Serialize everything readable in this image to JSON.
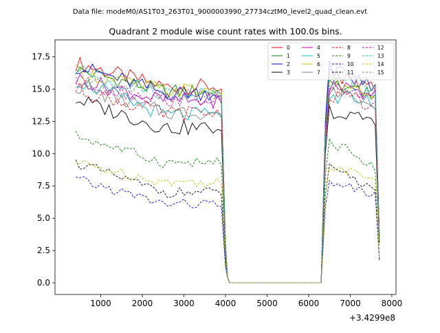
{
  "header": {
    "data_file_label": "Data file: modeM0/AS1T03_263T01_9000003990_27734cztM0_level2_quad_clean.evt"
  },
  "chart_data": {
    "type": "line",
    "title": "Quadrant 2 module wise count rates with 100.0s bins.",
    "xlabel": "",
    "ylabel": "",
    "x_offset_label": "+3.4299e8",
    "xlim": [
      -100,
      8100
    ],
    "ylim": [
      -0.9,
      18.8
    ],
    "xticks": [
      1000,
      2000,
      3000,
      4000,
      5000,
      6000,
      7000,
      8000
    ],
    "xtick_labels": [
      "1000",
      "2000",
      "3000",
      "4000",
      "5000",
      "6000",
      "7000",
      "8000"
    ],
    "yticks": [
      0.0,
      2.5,
      5.0,
      7.5,
      10.0,
      12.5,
      15.0,
      17.5
    ],
    "ytick_labels": [
      "0.0",
      "2.5",
      "5.0",
      "7.5",
      "10.0",
      "12.5",
      "15.0",
      "17.5"
    ],
    "legend_position": "top-right",
    "series": [
      {
        "name": "0",
        "color": "#ff0000",
        "dashed": false,
        "lvl1": 17.0,
        "lvl2": 15.2,
        "post": 16.2,
        "tail": 15.0
      },
      {
        "name": "1",
        "color": "#008000",
        "dashed": false,
        "lvl1": 16.5,
        "lvl2": 14.8,
        "post": 15.6,
        "tail": 14.6
      },
      {
        "name": "2",
        "color": "#0000ff",
        "dashed": false,
        "lvl1": 16.8,
        "lvl2": 14.7,
        "post": 16.6,
        "tail": 15.2
      },
      {
        "name": "3",
        "color": "#000000",
        "dashed": false,
        "lvl1": 14.2,
        "lvl2": 12.0,
        "post": 13.3,
        "tail": 12.3
      },
      {
        "name": "4",
        "color": "#c000c0",
        "dashed": false,
        "lvl1": 15.8,
        "lvl2": 14.1,
        "post": 15.3,
        "tail": 14.4
      },
      {
        "name": "5",
        "color": "#00bfbf",
        "dashed": false,
        "lvl1": 15.7,
        "lvl2": 13.0,
        "post": 14.5,
        "tail": 13.9
      },
      {
        "name": "6",
        "color": "#bfbf00",
        "dashed": false,
        "lvl1": 16.3,
        "lvl2": 14.9,
        "post": 15.8,
        "tail": 14.8
      },
      {
        "name": "7",
        "color": "#808080",
        "dashed": false,
        "lvl1": 15.2,
        "lvl2": 13.2,
        "post": 14.6,
        "tail": 13.6
      },
      {
        "name": "8",
        "color": "#ff0000",
        "dashed": true,
        "lvl1": 15.0,
        "lvl2": 13.1,
        "post": 14.6,
        "tail": 13.8
      },
      {
        "name": "9",
        "color": "#008000",
        "dashed": true,
        "lvl1": 11.4,
        "lvl2": 9.3,
        "post": 11.0,
        "tail": 9.0
      },
      {
        "name": "10",
        "color": "#0000ff",
        "dashed": true,
        "lvl1": 8.0,
        "lvl2": 6.1,
        "post": 7.8,
        "tail": 6.9
      },
      {
        "name": "11",
        "color": "#000000",
        "dashed": true,
        "lvl1": 9.3,
        "lvl2": 7.0,
        "post": 8.9,
        "tail": 7.4
      },
      {
        "name": "12",
        "color": "#c000c0",
        "dashed": true,
        "lvl1": 15.5,
        "lvl2": 14.2,
        "post": 15.2,
        "tail": 14.4
      },
      {
        "name": "13",
        "color": "#00bfbf",
        "dashed": true,
        "lvl1": 16.4,
        "lvl2": 14.7,
        "post": 15.9,
        "tail": 14.8
      },
      {
        "name": "14",
        "color": "#bfbf00",
        "dashed": true,
        "lvl1": 9.3,
        "lvl2": 7.8,
        "post": 9.0,
        "tail": 7.9
      },
      {
        "name": "15",
        "color": "#808080",
        "dashed": true,
        "lvl1": 15.8,
        "lvl2": 14.5,
        "post": 15.6,
        "tail": 14.7
      }
    ]
  }
}
